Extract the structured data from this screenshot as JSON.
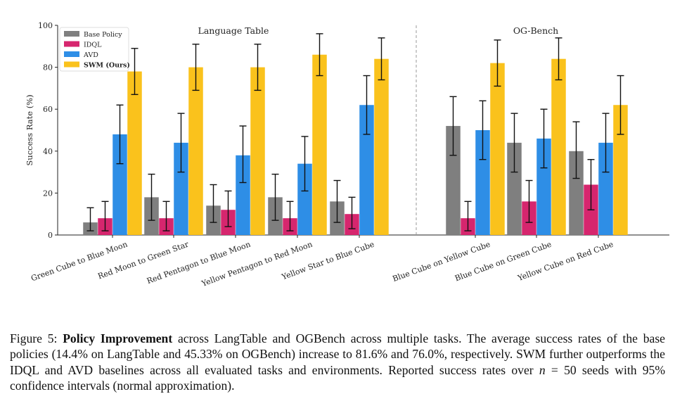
{
  "chart_data": {
    "type": "bar",
    "ylabel": "Success Rate (%)",
    "ylim": [
      0,
      100
    ],
    "yticks": [
      "0",
      "20",
      "40",
      "60",
      "80",
      "100"
    ],
    "grid": false,
    "legend_position": "top-left",
    "colors": {
      "Base Policy": "#7f7f7f",
      "IDQL": "#d6266e",
      "AVD": "#2e8ee6",
      "SWM (Ours)": "#fac21c"
    },
    "series_names": [
      "Base Policy",
      "IDQL",
      "AVD",
      "SWM (Ours)"
    ],
    "panels": [
      {
        "title": "Language Table",
        "categories": [
          "Green Cube to Blue Moon",
          "Red Moon to Green Star",
          "Red Pentagon to Blue Moon",
          "Yellow Pentagon to Red Moon",
          "Yellow Star to Blue Cube"
        ],
        "series": [
          {
            "name": "Base Policy",
            "values": [
              6,
              18,
              14,
              18,
              16
            ],
            "err_low": [
              2,
              7,
              6,
              7,
              6
            ],
            "err_high": [
              13,
              29,
              24,
              29,
              26
            ]
          },
          {
            "name": "IDQL",
            "values": [
              8,
              8,
              12,
              8,
              10
            ],
            "err_low": [
              2,
              2,
              4,
              2,
              3
            ],
            "err_high": [
              16,
              16,
              21,
              16,
              18
            ]
          },
          {
            "name": "AVD",
            "values": [
              48,
              44,
              38,
              34,
              62
            ],
            "err_low": [
              34,
              30,
              25,
              21,
              48
            ],
            "err_high": [
              62,
              58,
              52,
              47,
              76
            ]
          },
          {
            "name": "SWM (Ours)",
            "values": [
              78,
              80,
              80,
              86,
              84
            ],
            "err_low": [
              67,
              69,
              69,
              76,
              74
            ],
            "err_high": [
              89,
              91,
              91,
              96,
              94
            ]
          }
        ]
      },
      {
        "title": "OG-Bench",
        "categories": [
          "Blue Cube on Yellow Cube",
          "Blue Cube on Green Cube",
          "Yellow Cube on Red Cube"
        ],
        "series": [
          {
            "name": "Base Policy",
            "values": [
              52,
              44,
              40
            ],
            "err_low": [
              38,
              30,
              27
            ],
            "err_high": [
              66,
              58,
              54
            ]
          },
          {
            "name": "IDQL",
            "values": [
              8,
              16,
              24
            ],
            "err_low": [
              2,
              6,
              12
            ],
            "err_high": [
              16,
              26,
              36
            ]
          },
          {
            "name": "AVD",
            "values": [
              50,
              46,
              44
            ],
            "err_low": [
              36,
              32,
              30
            ],
            "err_high": [
              64,
              60,
              58
            ]
          },
          {
            "name": "SWM (Ours)",
            "values": [
              82,
              84,
              62
            ],
            "err_low": [
              71,
              74,
              48
            ],
            "err_high": [
              93,
              94,
              76
            ]
          }
        ]
      }
    ]
  },
  "caption": {
    "label": "Figure 5:",
    "bold_title": "Policy Improvement",
    "text_1": " across LangTable and OGBench across multiple tasks. The average success rates of the base policies (14.4% on LangTable and 45.33% on OGBench) increase to 81.6% and 76.0%, respectively. SWM further outperforms the IDQL and AVD baselines across all evaluated tasks and environments. Reported success rates over ",
    "math_n": "n",
    "text_2": " = 50 seeds with 95% confidence intervals (normal approximation)."
  }
}
